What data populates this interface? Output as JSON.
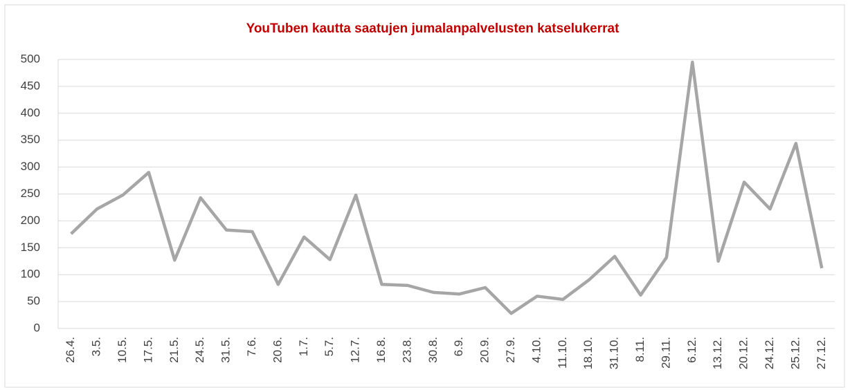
{
  "chart_data": {
    "type": "line",
    "title": "YouTuben kautta saatujen jumalanpalvelusten katselukerrat",
    "categories": [
      "26.4.",
      "3.5.",
      "10.5.",
      "17.5.",
      "21.5.",
      "24.5.",
      "31.5.",
      "7.6.",
      "20.6.",
      "1.7.",
      "5.7.",
      "12.7.",
      "16.8.",
      "23.8.",
      "30.8.",
      "6.9.",
      "20.9.",
      "27.9.",
      "4.10.",
      "11.10.",
      "18.10.",
      "31.10.",
      "8.11.",
      "29.11.",
      "6.12.",
      "13.12.",
      "20.12.",
      "24.12.",
      "25.12.",
      "27.12."
    ],
    "values": [
      176,
      222,
      248,
      290,
      127,
      243,
      183,
      180,
      82,
      170,
      128,
      248,
      82,
      80,
      67,
      64,
      76,
      28,
      60,
      54,
      90,
      134,
      62,
      132,
      495,
      125,
      272,
      222,
      344,
      112
    ],
    "color": "#a6a6a6",
    "ylim": [
      0,
      500
    ],
    "yticks": [
      0,
      50,
      100,
      150,
      200,
      250,
      300,
      350,
      400,
      450,
      500
    ],
    "grid": true
  }
}
